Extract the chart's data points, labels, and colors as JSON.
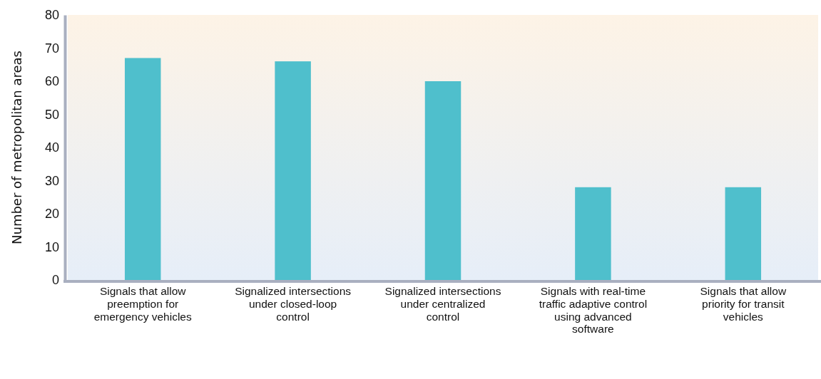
{
  "chart_data": {
    "type": "bar",
    "ylabel": "Number of metropolitan areas",
    "categories": [
      "Signals that allow preemption for emergency vehicles",
      "Signalized intersections under closed-loop control",
      "Signalized intersections under centralized control",
      "Signals with real-time traffic adaptive control using advanced software",
      "Signals that allow priority for transit vehicles"
    ],
    "values": [
      67,
      66,
      60,
      28,
      28
    ],
    "color": "#4fbfcc",
    "ylim": [
      0,
      80
    ],
    "yticks": [
      0,
      10,
      20,
      30,
      40,
      50,
      60,
      70,
      80
    ]
  }
}
